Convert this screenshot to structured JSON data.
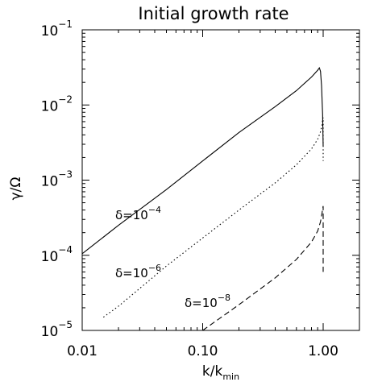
{
  "chart_data": {
    "type": "line",
    "title": "Initial growth rate",
    "xlabel": "k/k",
    "xlabel_sub": "min",
    "ylabel": "γ/Ω",
    "xscale": "log",
    "yscale": "log",
    "xlim": [
      0.01,
      2.0
    ],
    "ylim": [
      1e-05,
      0.1
    ],
    "x_ticks": [
      {
        "value": 0.01,
        "label": "0.01"
      },
      {
        "value": 0.1,
        "label": "0.10"
      },
      {
        "value": 1.0,
        "label": "1.00"
      }
    ],
    "y_ticks": [
      {
        "value": 1e-05,
        "base": "10",
        "exp": "−5"
      },
      {
        "value": 0.0001,
        "base": "10",
        "exp": "−4"
      },
      {
        "value": 0.001,
        "base": "10",
        "exp": "−3"
      },
      {
        "value": 0.01,
        "base": "10",
        "exp": "−2"
      },
      {
        "value": 0.1,
        "base": "10",
        "exp": "−1"
      }
    ],
    "grid": false,
    "legend": "none",
    "series": [
      {
        "style": "solid",
        "annotation": {
          "prefix": "δ=10",
          "exp": "−4"
        },
        "points": [
          [
            0.01,
            0.000105
          ],
          [
            0.02,
            0.00025
          ],
          [
            0.05,
            0.00075
          ],
          [
            0.1,
            0.0018
          ],
          [
            0.2,
            0.0043
          ],
          [
            0.4,
            0.0095
          ],
          [
            0.6,
            0.0155
          ],
          [
            0.8,
            0.0235
          ],
          [
            0.9,
            0.029
          ],
          [
            0.93,
            0.0312
          ],
          [
            0.95,
            0.028
          ],
          [
            0.97,
            0.018
          ],
          [
            0.99,
            0.0075
          ],
          [
            1.0,
            0.0028
          ]
        ]
      },
      {
        "style": "dotted",
        "annotation": {
          "prefix": "δ=10",
          "exp": "−6"
        },
        "points": [
          [
            0.015,
            1.5e-05
          ],
          [
            0.02,
            2.1e-05
          ],
          [
            0.05,
            7.2e-05
          ],
          [
            0.1,
            0.00017
          ],
          [
            0.2,
            0.0004
          ],
          [
            0.4,
            0.00092
          ],
          [
            0.6,
            0.0016
          ],
          [
            0.8,
            0.0026
          ],
          [
            0.9,
            0.0035
          ],
          [
            0.95,
            0.0044
          ],
          [
            0.98,
            0.0055
          ],
          [
            0.99,
            0.0065
          ],
          [
            1.0,
            0.0068
          ],
          [
            1.0,
            0.0018
          ]
        ]
      },
      {
        "style": "dashed",
        "annotation": {
          "prefix": "δ=10",
          "exp": "−8"
        },
        "points": [
          [
            0.1,
            1e-05
          ],
          [
            0.2,
            2.2e-05
          ],
          [
            0.4,
            5e-05
          ],
          [
            0.6,
            8.8e-05
          ],
          [
            0.8,
            0.00015
          ],
          [
            0.9,
            0.00021
          ],
          [
            0.95,
            0.00028
          ],
          [
            0.98,
            0.00037
          ],
          [
            0.99,
            0.00042
          ],
          [
            1.0,
            0.00045
          ],
          [
            1.0,
            6e-05
          ]
        ]
      }
    ]
  }
}
